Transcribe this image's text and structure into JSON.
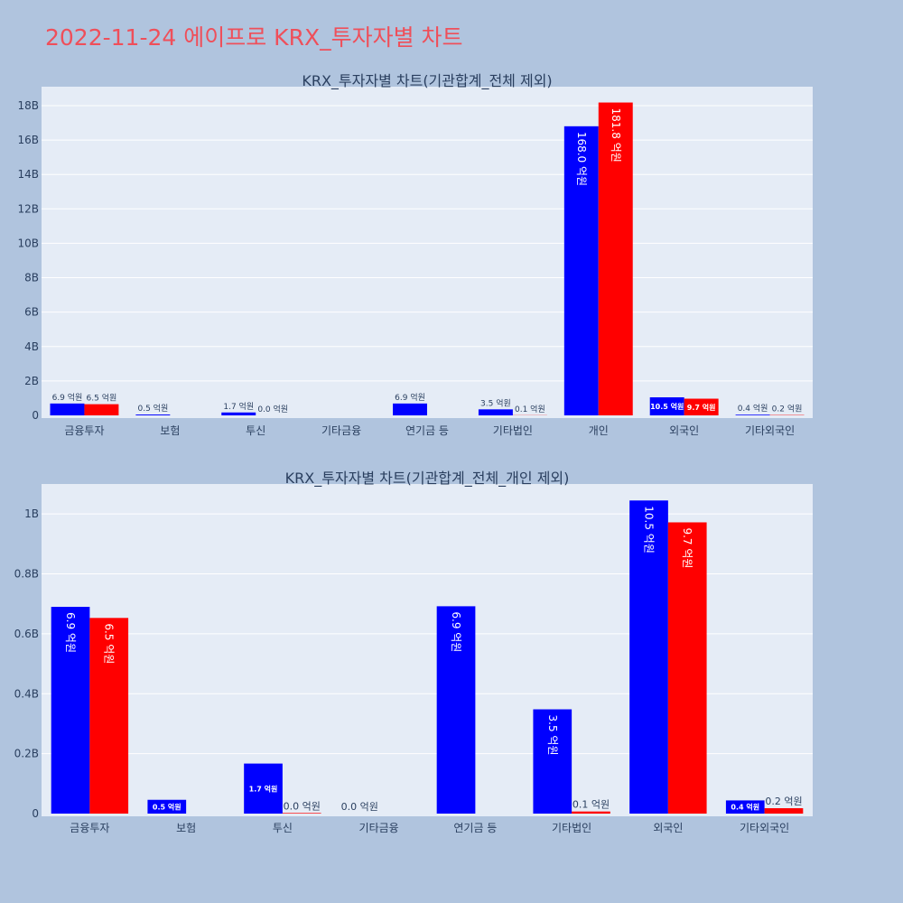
{
  "page_title": "2022-11-24 에이프로 KRX_투자자별 차트",
  "colors": {
    "buy": "#0000ff",
    "sell": "#ff0000",
    "plot_bg": "#e5ecf6",
    "page_bg": "#b0c4de",
    "grid": "#ffffff",
    "title": "#ef4f5a",
    "text": "#2a3f5f"
  },
  "chart_data": [
    {
      "type": "bar",
      "title": "KRX_투자자별 차트(기관합계_전체 제외)",
      "categories": [
        "금융투자",
        "보험",
        "투신",
        "기타금융",
        "연기금 등",
        "기타법인",
        "개인",
        "외국인",
        "기타외국인"
      ],
      "series": [
        {
          "values": [
            0.69,
            0.05,
            0.17,
            null,
            0.69,
            0.35,
            16.8,
            1.05,
            0.04
          ],
          "labels": [
            "6.9 억원",
            "0.5 억원",
            "1.7 억원",
            "",
            "6.9 억원",
            "3.5 억원",
            "168.0 억원",
            "10.5 억원",
            "0.4 억원"
          ]
        },
        {
          "values": [
            0.65,
            null,
            0.0,
            null,
            null,
            0.01,
            18.18,
            0.97,
            0.02
          ],
          "labels": [
            "6.5 억원",
            "",
            "0.0 억원",
            "",
            "",
            "0.1 억원",
            "181.8 억원",
            "9.7 억원",
            "0.2 억원"
          ]
        }
      ],
      "yticks": [
        "0",
        "2B",
        "4B",
        "6B",
        "8B",
        "10B",
        "12B",
        "14B",
        "16B",
        "18B"
      ],
      "ytick_values": [
        0,
        2,
        4,
        6,
        8,
        10,
        12,
        14,
        16,
        18
      ],
      "ylim": [
        0,
        19.1
      ],
      "grid": true
    },
    {
      "type": "bar",
      "title": "KRX_투자자별 차트(기관합계_전체_개인 제외)",
      "categories": [
        "금융투자",
        "보험",
        "투신",
        "기타금융",
        "연기금 등",
        "기타법인",
        "외국인",
        "기타외국인"
      ],
      "series": [
        {
          "values": [
            0.69,
            0.046,
            0.167,
            0.0,
            0.692,
            0.348,
            1.045,
            0.044
          ],
          "labels": [
            "6.9 억원",
            "0.5 억원",
            "1.7 억원",
            "0.0 억원",
            "6.9 억원",
            "3.5 억원",
            "10.5 억원",
            "0.4 억원"
          ]
        },
        {
          "values": [
            0.653,
            null,
            0.002,
            null,
            null,
            0.007,
            0.972,
            0.018
          ],
          "labels": [
            "6.5 억원",
            "",
            "0.0 억원",
            "",
            "",
            "0.1 억원",
            "9.7 억원",
            "0.2 억원"
          ]
        }
      ],
      "yticks": [
        "0",
        "0.2B",
        "0.4B",
        "0.6B",
        "0.8B",
        "1B"
      ],
      "ytick_values": [
        0,
        0.2,
        0.4,
        0.6,
        0.8,
        1.0
      ],
      "ylim": [
        0,
        1.1
      ],
      "grid": true
    }
  ]
}
